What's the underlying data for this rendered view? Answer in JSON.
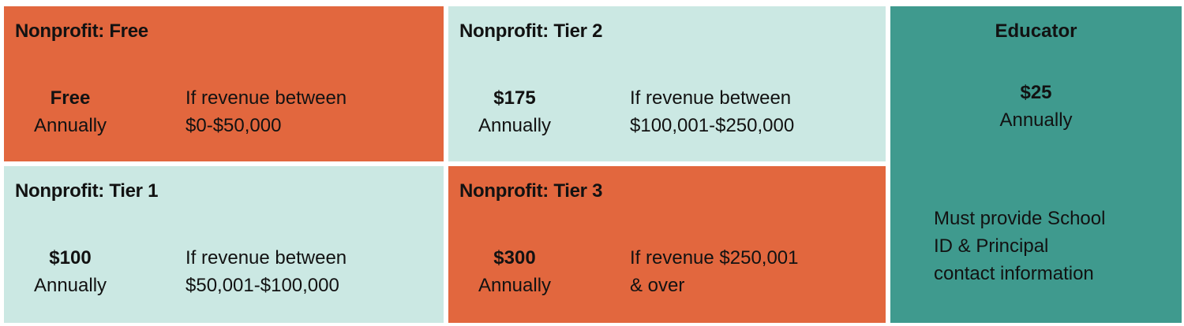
{
  "colors": {
    "orange": "#E2673E",
    "mint": "#CBE8E3",
    "teal": "#3F9A8E",
    "text": "#121212",
    "gap": "#FFFFFF"
  },
  "cells": [
    {
      "title": "Nonprofit: Free",
      "price": "Free",
      "period": "Annually",
      "condition_lines": [
        "If revenue between",
        "$0-$50,000"
      ],
      "theme": "orange"
    },
    {
      "title": "Nonprofit: Tier 2",
      "price": "$175",
      "period": "Annually",
      "condition_lines": [
        "If revenue between",
        "$100,001-$250,000"
      ],
      "theme": "mint"
    },
    {
      "title": "Nonprofit: Tier 1",
      "price": "$100",
      "period": "Annually",
      "condition_lines": [
        "If revenue between",
        "$50,001-$100,000"
      ],
      "theme": "mint"
    },
    {
      "title": "Nonprofit: Tier 3",
      "price": "$300",
      "period": "Annually",
      "condition_lines": [
        "If revenue $250,001",
        "& over"
      ],
      "theme": "orange"
    }
  ],
  "educator": {
    "title": "Educator",
    "price": "$25",
    "period": "Annually",
    "note_lines": [
      "Must provide School",
      "ID & Principal",
      "contact information"
    ]
  }
}
